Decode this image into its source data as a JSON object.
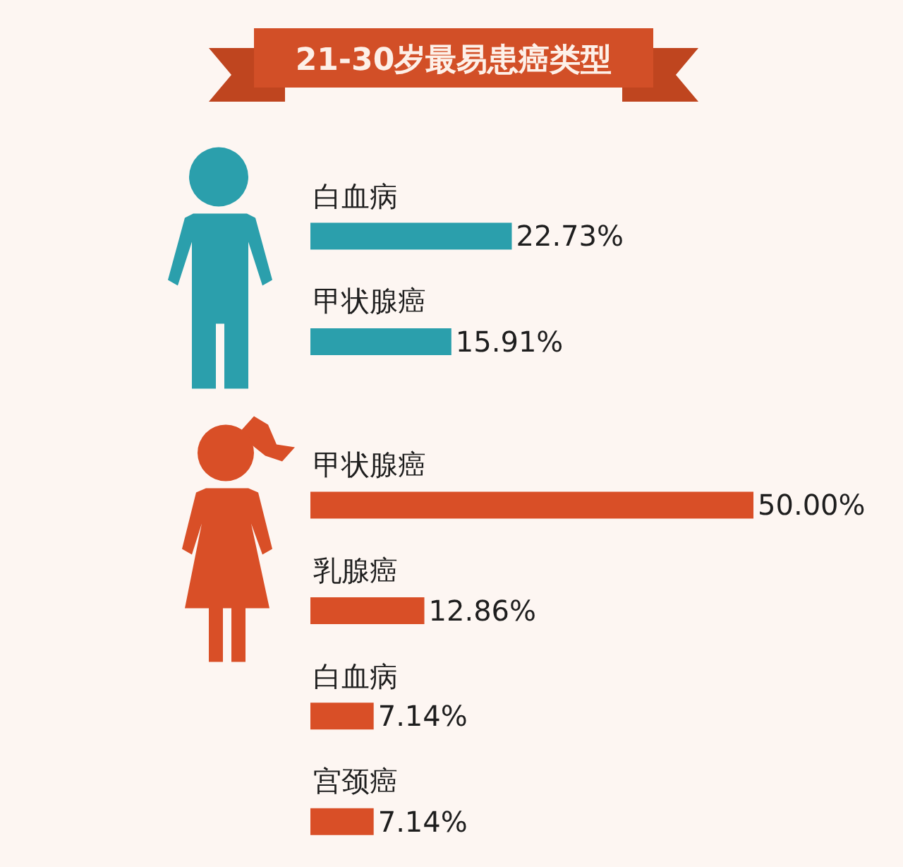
{
  "chart_data": {
    "type": "bar",
    "orientation": "horizontal",
    "title": "21-30岁最易患癌类型",
    "categories": [
      "白血病",
      "甲状腺癌",
      "甲状腺癌",
      "乳腺癌",
      "白血病",
      "宫颈癌"
    ],
    "series": [
      {
        "color": "#2b9fac",
        "values": [
          22.73,
          15.91,
          null,
          null,
          null,
          null
        ],
        "value_labels": [
          "22.73%",
          "15.91%",
          null,
          null,
          null,
          null
        ]
      },
      {
        "color": "#d94f27",
        "values": [
          null,
          null,
          50.0,
          12.86,
          7.14,
          7.14
        ],
        "value_labels": [
          null,
          null,
          "50.00%",
          "12.86%",
          "7.14%",
          "7.14%"
        ]
      }
    ]
  }
}
